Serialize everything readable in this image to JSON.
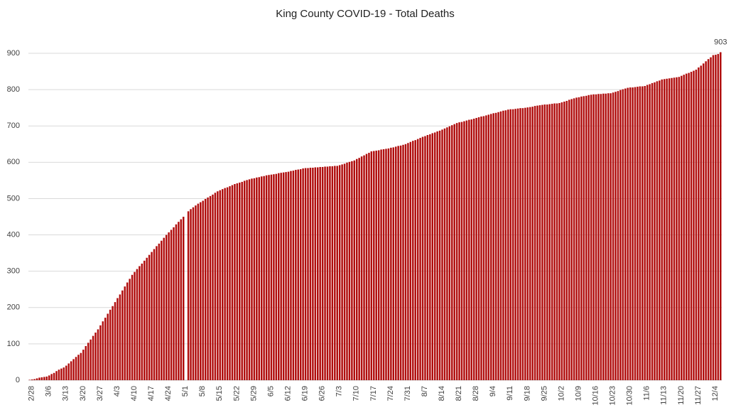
{
  "chart_data": {
    "type": "bar",
    "title": "King County COVID-19 - Total Deaths",
    "categories": [
      "2/28",
      null,
      null,
      null,
      null,
      null,
      null,
      "3/6",
      null,
      null,
      null,
      null,
      null,
      null,
      "3/13",
      null,
      null,
      null,
      null,
      null,
      null,
      "3/20",
      null,
      null,
      null,
      null,
      null,
      null,
      "3/27",
      null,
      null,
      null,
      null,
      null,
      null,
      "4/3",
      null,
      null,
      null,
      null,
      null,
      null,
      "4/10",
      null,
      null,
      null,
      null,
      null,
      null,
      "4/17",
      null,
      null,
      null,
      null,
      null,
      null,
      "4/24",
      null,
      null,
      null,
      null,
      null,
      null,
      "5/1",
      null,
      null,
      null,
      null,
      null,
      null,
      "5/8",
      null,
      null,
      null,
      null,
      null,
      null,
      "5/15",
      null,
      null,
      null,
      null,
      null,
      null,
      "5/22",
      null,
      null,
      null,
      null,
      null,
      null,
      "5/29",
      null,
      null,
      null,
      null,
      null,
      null,
      "6/5",
      null,
      null,
      null,
      null,
      null,
      null,
      "6/12",
      null,
      null,
      null,
      null,
      null,
      null,
      "6/19",
      null,
      null,
      null,
      null,
      null,
      null,
      "6/26",
      null,
      null,
      null,
      null,
      null,
      null,
      "7/3",
      null,
      null,
      null,
      null,
      null,
      null,
      "7/10",
      null,
      null,
      null,
      null,
      null,
      null,
      "7/17",
      null,
      null,
      null,
      null,
      null,
      null,
      "7/24",
      null,
      null,
      null,
      null,
      null,
      null,
      "7/31",
      null,
      null,
      null,
      null,
      null,
      null,
      "8/7",
      null,
      null,
      null,
      null,
      null,
      null,
      "8/14",
      null,
      null,
      null,
      null,
      null,
      null,
      "8/21",
      null,
      null,
      null,
      null,
      null,
      null,
      "8/28",
      null,
      null,
      null,
      null,
      null,
      null,
      "9/4",
      null,
      null,
      null,
      null,
      null,
      null,
      "9/11",
      null,
      null,
      null,
      null,
      null,
      null,
      "9/18",
      null,
      null,
      null,
      null,
      null,
      null,
      "9/25",
      null,
      null,
      null,
      null,
      null,
      null,
      "10/2",
      null,
      null,
      null,
      null,
      null,
      null,
      "10/9",
      null,
      null,
      null,
      null,
      null,
      null,
      "10/16",
      null,
      null,
      null,
      null,
      null,
      null,
      "10/23",
      null,
      null,
      null,
      null,
      null,
      null,
      "10/30",
      null,
      null,
      null,
      null,
      null,
      null,
      "11/6",
      null,
      null,
      null,
      null,
      null,
      null,
      "11/13",
      null,
      null,
      null,
      null,
      null,
      null,
      "11/20",
      null,
      null,
      null,
      null,
      null,
      null,
      "11/27",
      null,
      null,
      null,
      null,
      null,
      null,
      "12/4",
      null,
      null,
      null
    ],
    "values": [
      1,
      2,
      3,
      5,
      7,
      8,
      9,
      10,
      13,
      17,
      20,
      25,
      29,
      32,
      35,
      40,
      46,
      52,
      58,
      64,
      70,
      75,
      84,
      94,
      103,
      112,
      122,
      131,
      140,
      151,
      162,
      172,
      183,
      194,
      204,
      215,
      226,
      236,
      247,
      258,
      269,
      279,
      290,
      298,
      306,
      314,
      321,
      329,
      337,
      345,
      353,
      361,
      369,
      376,
      384,
      392,
      400,
      407,
      414,
      421,
      429,
      436,
      443,
      450,
      null,
      465,
      471,
      476,
      481,
      486,
      490,
      494,
      499,
      503,
      507,
      511,
      516,
      520,
      523,
      526,
      529,
      531,
      534,
      537,
      540,
      542,
      544,
      546,
      549,
      551,
      553,
      555,
      556,
      558,
      559,
      561,
      562,
      564,
      565,
      566,
      567,
      568,
      570,
      571,
      572,
      573,
      574,
      576,
      577,
      579,
      580,
      581,
      583,
      584,
      584,
      585,
      585,
      586,
      586,
      587,
      587,
      588,
      588,
      589,
      589,
      590,
      590,
      592,
      594,
      596,
      599,
      601,
      603,
      605,
      609,
      612,
      616,
      619,
      623,
      626,
      630,
      631,
      632,
      633,
      635,
      636,
      637,
      638,
      640,
      641,
      643,
      645,
      646,
      648,
      650,
      653,
      656,
      659,
      661,
      664,
      667,
      670,
      672,
      675,
      677,
      680,
      682,
      685,
      687,
      690,
      693,
      696,
      699,
      702,
      705,
      708,
      710,
      711,
      713,
      715,
      717,
      718,
      720,
      722,
      724,
      726,
      727,
      729,
      731,
      733,
      735,
      736,
      738,
      740,
      742,
      743,
      745,
      746,
      746,
      747,
      748,
      749,
      749,
      750,
      751,
      752,
      753,
      755,
      756,
      757,
      758,
      759,
      759,
      760,
      761,
      762,
      762,
      763,
      765,
      767,
      769,
      772,
      774,
      776,
      778,
      779,
      781,
      782,
      783,
      785,
      786,
      787,
      787,
      788,
      788,
      789,
      789,
      790,
      790,
      792,
      794,
      796,
      799,
      801,
      803,
      805,
      806,
      806,
      807,
      808,
      809,
      809,
      810,
      813,
      815,
      818,
      820,
      823,
      825,
      828,
      829,
      830,
      831,
      832,
      833,
      834,
      835,
      838,
      841,
      844,
      846,
      849,
      852,
      855,
      861,
      866,
      872,
      878,
      884,
      889,
      895,
      896,
      898,
      903
    ],
    "color": "#b00c0c",
    "ylim": [
      0,
      900
    ],
    "yticks": [
      0,
      100,
      200,
      300,
      400,
      500,
      600,
      700,
      800,
      900
    ],
    "grid": true
  }
}
